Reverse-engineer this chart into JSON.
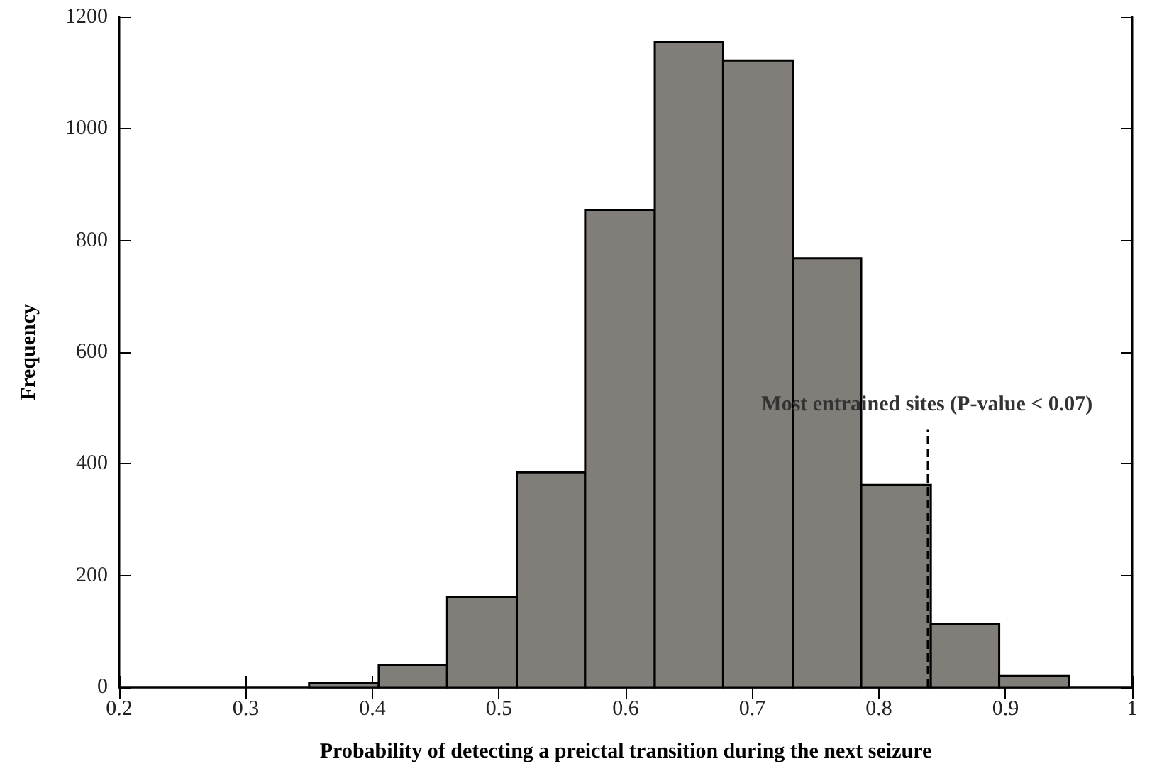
{
  "chart_data": {
    "type": "histogram",
    "xlabel": "Probability of detecting a preictal transition during the next seizure",
    "ylabel": "Frequency",
    "bins": [
      0.35,
      0.405,
      0.459,
      0.514,
      0.568,
      0.623,
      0.677,
      0.732,
      0.786,
      0.841,
      0.895,
      0.95
    ],
    "values": [
      8,
      40,
      162,
      385,
      855,
      1155,
      1122,
      768,
      362,
      113,
      20
    ],
    "color": "#817d79",
    "xlim": [
      0.2,
      1
    ],
    "xticks": [
      0.2,
      0.3,
      0.4,
      0.5,
      0.6,
      0.7,
      0.8,
      0.9,
      1
    ],
    "ylim": [
      0,
      1200
    ],
    "yticks": [
      0,
      200,
      400,
      600,
      800,
      1000,
      1200
    ],
    "ref_lines": [
      {
        "axis": "x",
        "value": 0.838,
        "label": "Most entrained sites (P-value < 0.07)",
        "line_style": "dashed",
        "color": "#000000"
      }
    ],
    "grid": false
  }
}
